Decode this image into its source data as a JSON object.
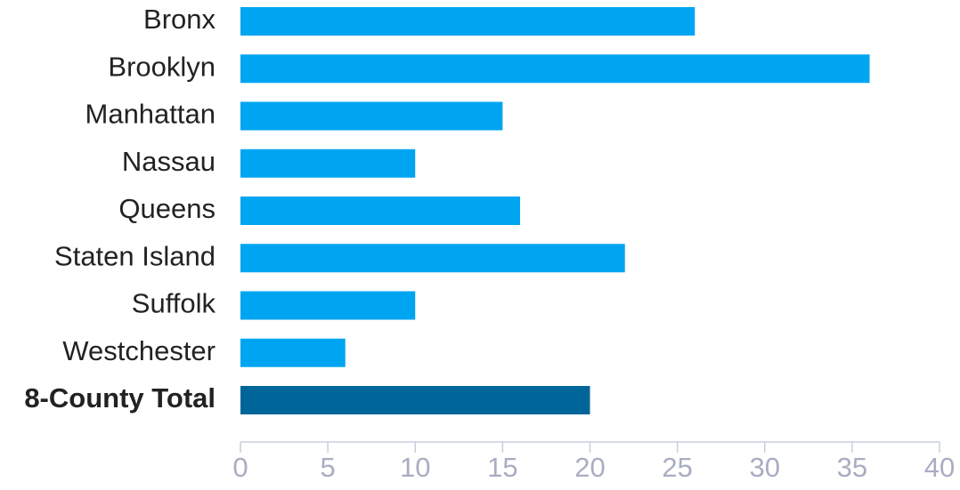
{
  "chart_data": {
    "type": "barh",
    "categories": [
      "Bronx",
      "Brooklyn",
      "Manhattan",
      "Nassau",
      "Queens",
      "Staten Island",
      "Suffolk",
      "Westchester",
      "8-County Total"
    ],
    "values": [
      26,
      36,
      15,
      10,
      16,
      22,
      10,
      6,
      20
    ],
    "colors": [
      "#00a5f2",
      "#00a5f2",
      "#00a5f2",
      "#00a5f2",
      "#00a5f2",
      "#00a5f2",
      "#00a5f2",
      "#00a5f2",
      "#006699"
    ],
    "xlim": [
      0,
      40
    ],
    "xticks": [
      0,
      5,
      10,
      15,
      20,
      25,
      30,
      35,
      40
    ]
  }
}
